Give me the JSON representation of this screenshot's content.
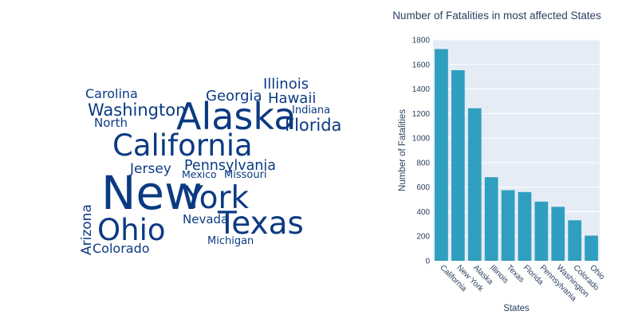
{
  "wordcloud": {
    "color": "#0b3a82",
    "words": [
      {
        "text": "Carolina"
      },
      {
        "text": "Washington"
      },
      {
        "text": "North"
      },
      {
        "text": "Alaska"
      },
      {
        "text": "Georgia"
      },
      {
        "text": "Illinois"
      },
      {
        "text": "Hawaii"
      },
      {
        "text": "Indiana"
      },
      {
        "text": "Florida"
      },
      {
        "text": "California"
      },
      {
        "text": "Pennsylvania"
      },
      {
        "text": "Jersey"
      },
      {
        "text": "Mexico"
      },
      {
        "text": "Missouri"
      },
      {
        "text": "New"
      },
      {
        "text": "York"
      },
      {
        "text": "Arizona"
      },
      {
        "text": "Nevada"
      },
      {
        "text": "Texas"
      },
      {
        "text": "Ohio"
      },
      {
        "text": "Michigan"
      },
      {
        "text": "Colorado"
      }
    ]
  },
  "chart_data": {
    "type": "bar",
    "title": "Number of Fatalities in most affected States",
    "xlabel": "States",
    "ylabel": "Number of Fatalities",
    "categories": [
      "California",
      "New York",
      "Alaska",
      "Illinois",
      "Texas",
      "Florida",
      "Pennsylvania",
      "Washington",
      "Colorado",
      "Ohio"
    ],
    "values": [
      1725,
      1553,
      1243,
      681,
      575,
      560,
      482,
      440,
      330,
      205
    ],
    "ylim": [
      0,
      1800
    ],
    "yticks": [
      0,
      200,
      400,
      600,
      800,
      1000,
      1200,
      1400,
      1600,
      1800
    ],
    "grid": true,
    "bar_color": "#2f9fbf",
    "plot_bg": "#e5ecf6"
  }
}
